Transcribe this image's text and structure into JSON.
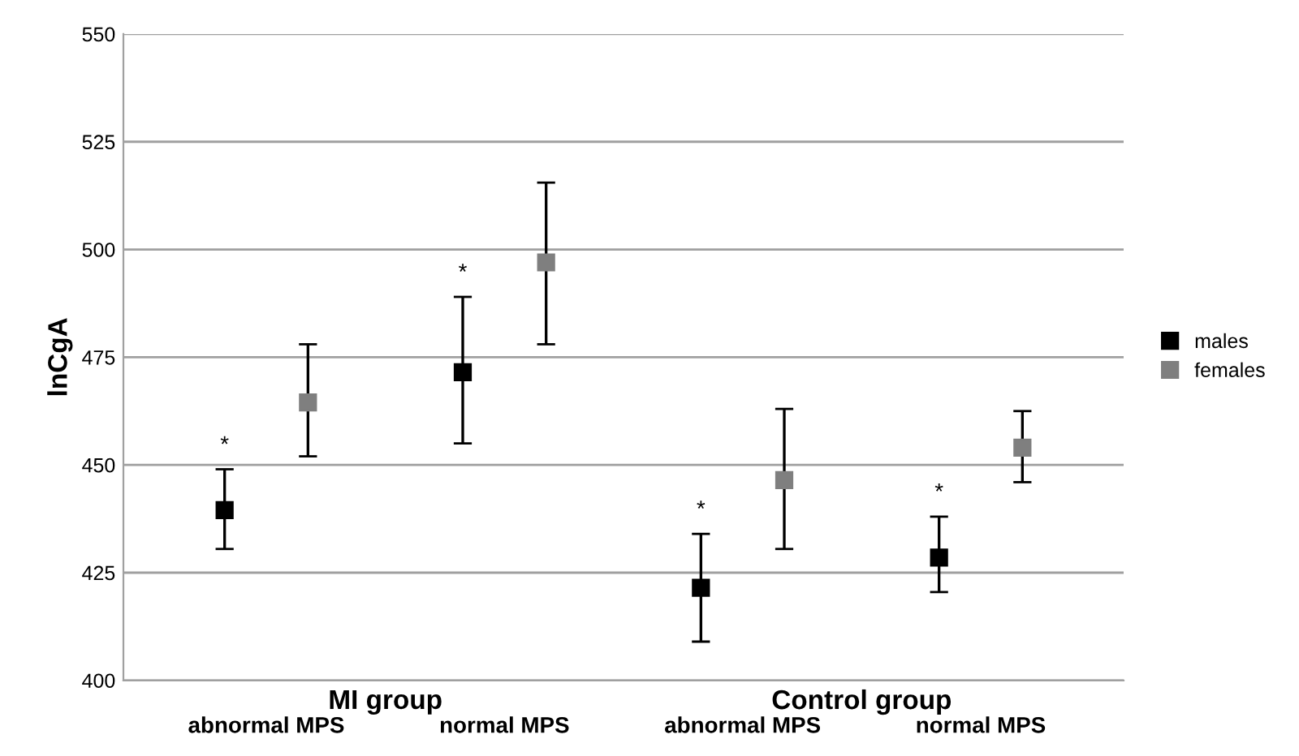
{
  "chart_data": {
    "type": "scatter",
    "ylabel": "lnCgA",
    "categories": [
      "abnormal MPS",
      "normal MPS",
      "abnormal MPS",
      "normal MPS"
    ],
    "series": [
      {
        "name": "males",
        "color": "#000000",
        "values": [
          439.5,
          471.5,
          421.5,
          428.5
        ],
        "errors": [
          [
            430.5,
            449
          ],
          [
            455,
            489
          ],
          [
            409,
            434
          ],
          [
            420.5,
            438
          ]
        ]
      },
      {
        "name": "females",
        "color": "#7f7f7f",
        "values": [
          464.5,
          497,
          446.5,
          454
        ],
        "errors": [
          [
            452,
            478
          ],
          [
            478,
            515.5
          ],
          [
            430.5,
            463
          ],
          [
            446,
            462.5
          ]
        ]
      }
    ],
    "ylim": [
      400,
      550
    ],
    "yticks": [
      400,
      425,
      450,
      475,
      500,
      525,
      550
    ],
    "grid": "y",
    "legend": "right",
    "marker": "square",
    "annotations": [
      "MI group",
      "Control group",
      "*",
      "*",
      "*",
      "*"
    ]
  }
}
